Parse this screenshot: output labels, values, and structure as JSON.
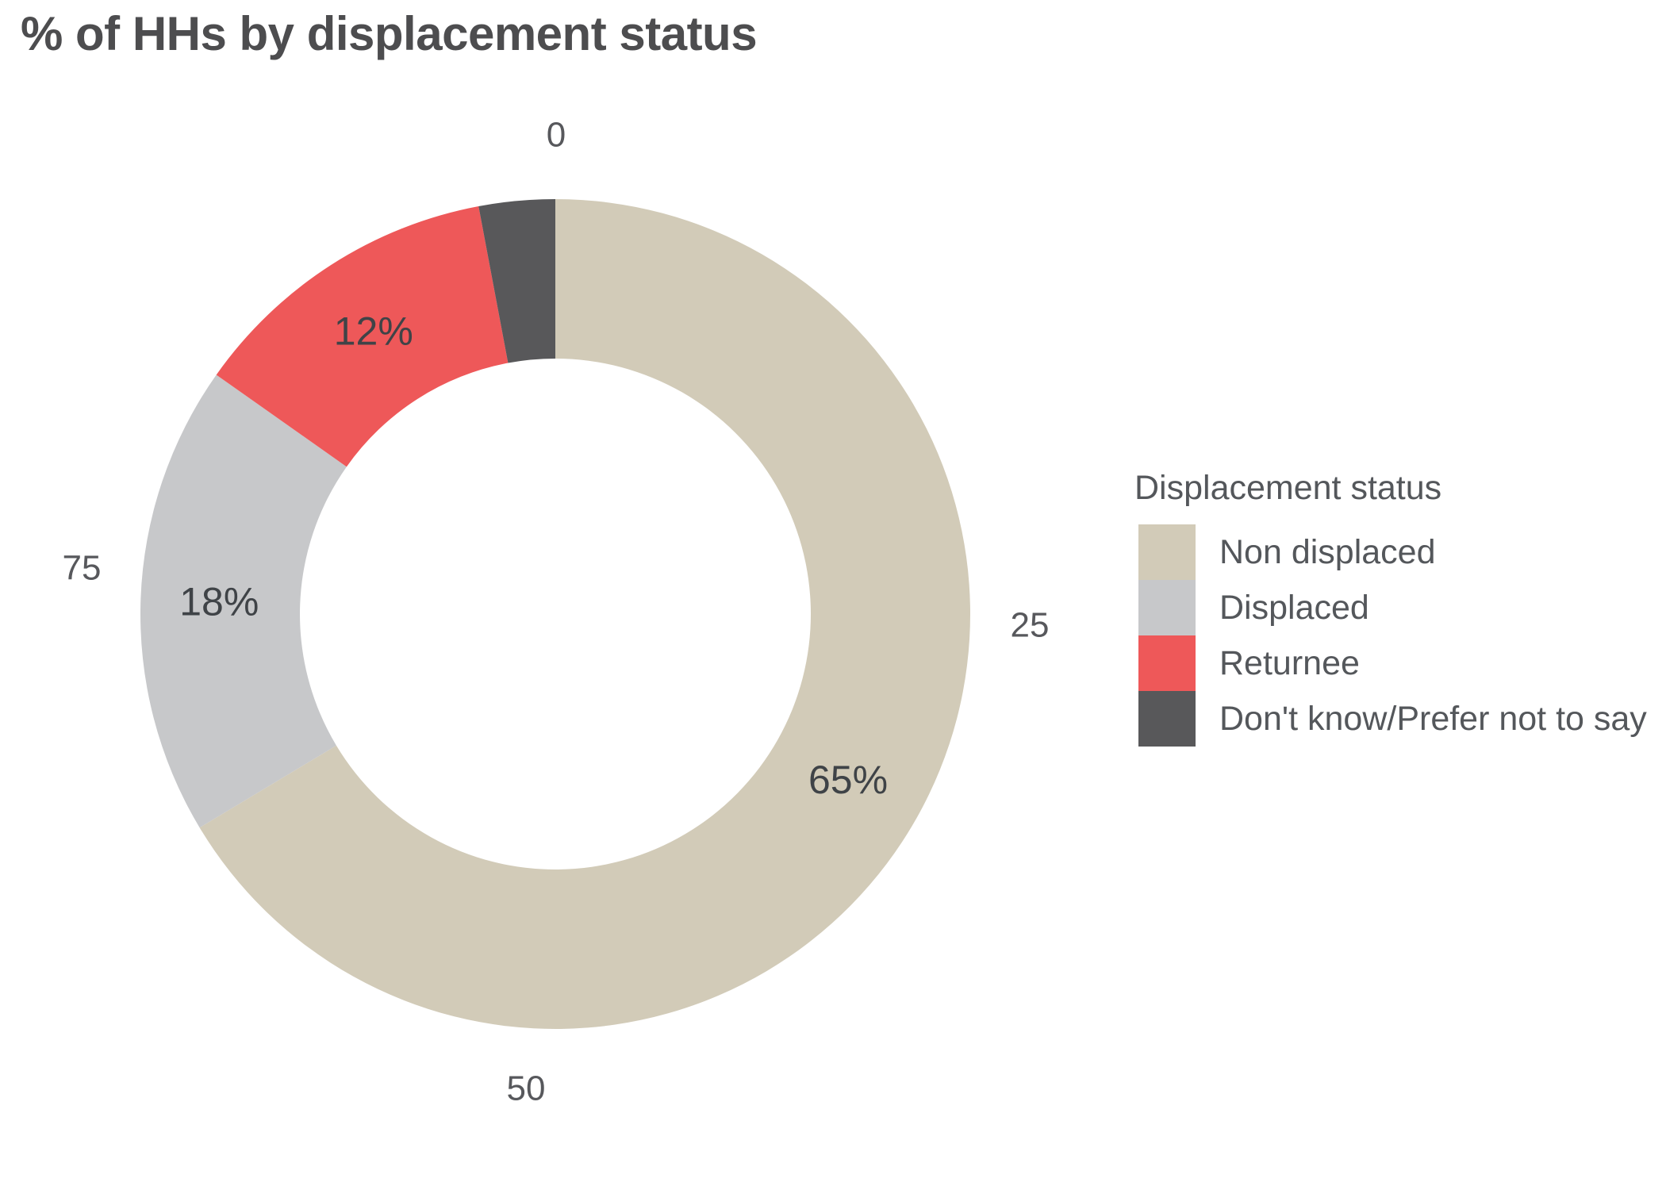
{
  "title": {
    "text": "% of HHs by displacement status"
  },
  "chart_data": {
    "type": "pie",
    "subtype": "donut",
    "title": "% of HHs by displacement status",
    "categories": [
      "Non displaced",
      "Displaced",
      "Returnee",
      "Don't know/Prefer not to say"
    ],
    "values": [
      65,
      18,
      12,
      2.9
    ],
    "displayed_labels": [
      "65%",
      "18%",
      "12%",
      ""
    ],
    "colors": [
      "#D2CBB8",
      "#C7C8CA",
      "#EE5859",
      "#58585A"
    ],
    "scale_ticks": [
      "0",
      "25",
      "50",
      "75"
    ],
    "legend_title": "Displacement status",
    "legend_position": "right",
    "start_angle": "top",
    "direction": "clockwise",
    "hole": true
  },
  "legend": {
    "title": "Displacement status",
    "items": [
      {
        "label": "Non displaced",
        "color": "#D2CBB8"
      },
      {
        "label": "Displaced",
        "color": "#C7C8CA"
      },
      {
        "label": "Returnee",
        "color": "#EE5859"
      },
      {
        "label": "Don't know/Prefer not to say",
        "color": "#58585A"
      }
    ]
  }
}
